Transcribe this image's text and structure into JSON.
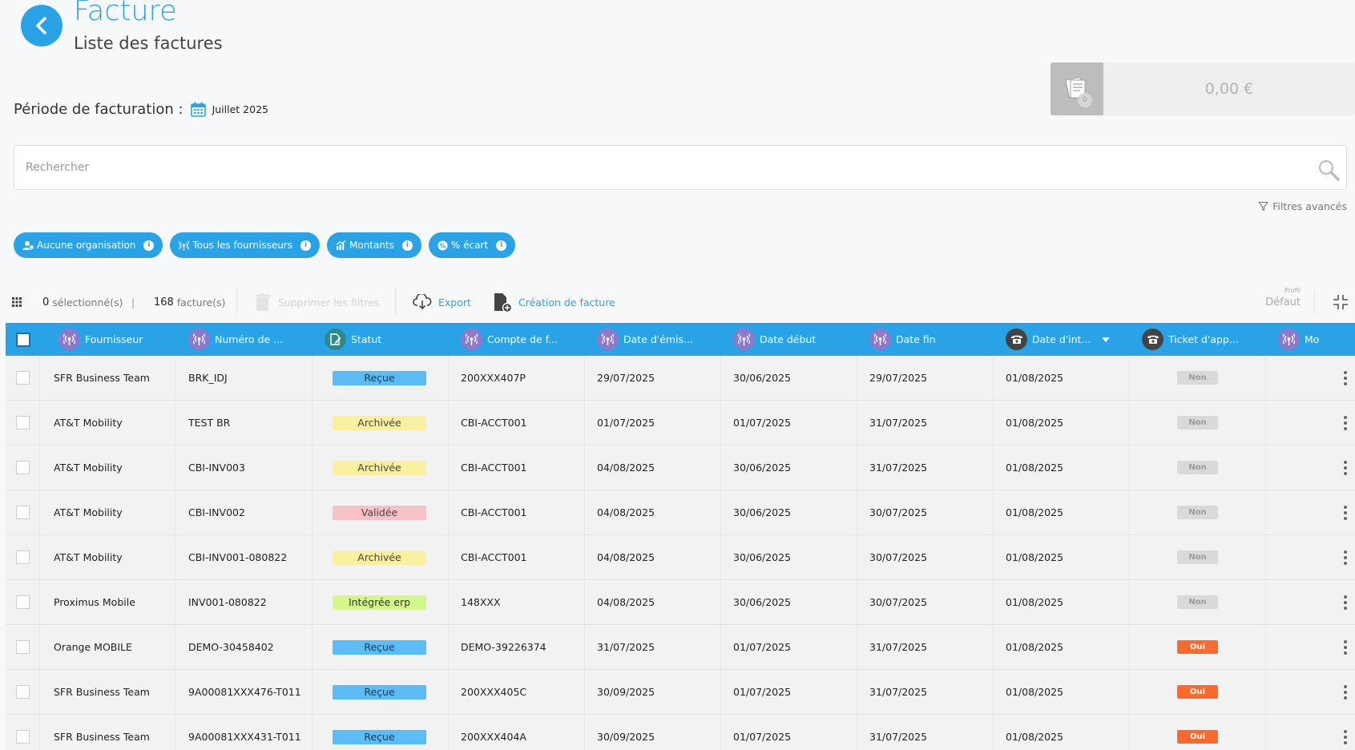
{
  "header": {
    "title": "Facture",
    "subtitle": "Liste des factures"
  },
  "period": {
    "label": "Période de facturation :",
    "value": "Juillet 2025"
  },
  "total": {
    "badge": "0",
    "amount": "0,00 €"
  },
  "search": {
    "placeholder": "Rechercher"
  },
  "advanced_filters": {
    "label": "Filtres avancés"
  },
  "chips": [
    {
      "label": "Aucune organisation",
      "info": "i"
    },
    {
      "label": "Tous les fournisseurs",
      "info": "i"
    },
    {
      "label": "Montants",
      "info": "i"
    },
    {
      "label": "% écart",
      "info": "i"
    }
  ],
  "toolbar": {
    "selected_count": "0",
    "selected_label": "sélectionné(s)",
    "separator": "|",
    "invoice_count": "168",
    "invoice_label": "facture(s)",
    "clear_filters": "Supprimer les filtres",
    "export": "Export",
    "create_invoice": "Création de facture",
    "profile_label": "Profil",
    "profile_value": "Défaut"
  },
  "columns": [
    "Fournisseur",
    "Numéro de ...",
    "Statut",
    "Compte de f...",
    "Date d'émis...",
    "Date début",
    "Date fin",
    "Date d'int...",
    "Ticket d'app...",
    "Mo"
  ],
  "colors": {
    "accent": "#2aa3e6",
    "status_recue": "#5bbcf6",
    "status_archivee": "#faf0a0",
    "status_validee": "#f7c1c8",
    "status_integree": "#d5f78a",
    "ticket_non": "#d9d9d9",
    "ticket_oui": "#fb6a2c"
  },
  "rows": [
    {
      "supplier": "SFR Business Team",
      "number": "BRK_IDJ",
      "status": "Reçue",
      "status_type": "recue",
      "account": "200XXX407P",
      "issue_date": "29/07/2025",
      "start_date": "30/06/2025",
      "end_date": "29/07/2025",
      "integration_date": "01/08/2025",
      "ticket": "Non"
    },
    {
      "supplier": "AT&T Mobility",
      "number": "TEST BR",
      "status": "Archivée",
      "status_type": "archivee",
      "account": "CBI-ACCT001",
      "issue_date": "01/07/2025",
      "start_date": "01/07/2025",
      "end_date": "31/07/2025",
      "integration_date": "01/08/2025",
      "ticket": "Non"
    },
    {
      "supplier": "AT&T Mobility",
      "number": "CBI-INV003",
      "status": "Archivée",
      "status_type": "archivee",
      "account": "CBI-ACCT001",
      "issue_date": "04/08/2025",
      "start_date": "30/06/2025",
      "end_date": "31/07/2025",
      "integration_date": "01/08/2025",
      "ticket": "Non"
    },
    {
      "supplier": "AT&T Mobility",
      "number": "CBI-INV002",
      "status": "Validée",
      "status_type": "validee",
      "account": "CBI-ACCT001",
      "issue_date": "04/08/2025",
      "start_date": "30/06/2025",
      "end_date": "30/07/2025",
      "integration_date": "01/08/2025",
      "ticket": "Non"
    },
    {
      "supplier": "AT&T Mobility",
      "number": "CBI-INV001-080822",
      "status": "Archivée",
      "status_type": "archivee",
      "account": "CBI-ACCT001",
      "issue_date": "04/08/2025",
      "start_date": "30/06/2025",
      "end_date": "30/07/2025",
      "integration_date": "01/08/2025",
      "ticket": "Non"
    },
    {
      "supplier": "Proximus Mobile",
      "number": "INV001-080822",
      "status": "Intégrée erp",
      "status_type": "integree",
      "account": "148XXX",
      "issue_date": "04/08/2025",
      "start_date": "30/06/2025",
      "end_date": "30/07/2025",
      "integration_date": "01/08/2025",
      "ticket": "Non"
    },
    {
      "supplier": "Orange MOBILE",
      "number": "DEMO-30458402",
      "status": "Reçue",
      "status_type": "recue",
      "account": "DEMO-39226374",
      "issue_date": "31/07/2025",
      "start_date": "01/07/2025",
      "end_date": "31/07/2025",
      "integration_date": "01/08/2025",
      "ticket": "Oui"
    },
    {
      "supplier": "SFR Business Team",
      "number": "9A00081XXX476-T011",
      "status": "Reçue",
      "status_type": "recue",
      "account": "200XXX405C",
      "issue_date": "30/09/2025",
      "start_date": "01/07/2025",
      "end_date": "31/07/2025",
      "integration_date": "01/08/2025",
      "ticket": "Oui"
    },
    {
      "supplier": "SFR Business Team",
      "number": "9A00081XXX431-T011",
      "status": "Reçue",
      "status_type": "recue",
      "account": "200XXX404A",
      "issue_date": "30/09/2025",
      "start_date": "01/07/2025",
      "end_date": "31/07/2025",
      "integration_date": "01/08/2025",
      "ticket": "Oui"
    }
  ]
}
